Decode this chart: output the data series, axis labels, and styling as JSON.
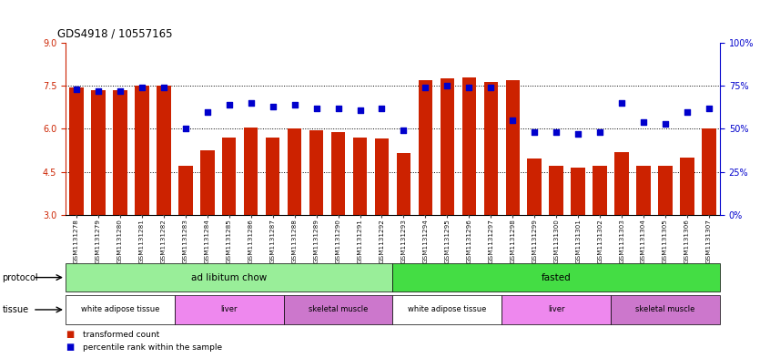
{
  "title": "GDS4918 / 10557165",
  "samples": [
    "GSM1131278",
    "GSM1131279",
    "GSM1131280",
    "GSM1131281",
    "GSM1131282",
    "GSM1131283",
    "GSM1131284",
    "GSM1131285",
    "GSM1131286",
    "GSM1131287",
    "GSM1131288",
    "GSM1131289",
    "GSM1131290",
    "GSM1131291",
    "GSM1131292",
    "GSM1131293",
    "GSM1131294",
    "GSM1131295",
    "GSM1131296",
    "GSM1131297",
    "GSM1131298",
    "GSM1131299",
    "GSM1131300",
    "GSM1131301",
    "GSM1131302",
    "GSM1131303",
    "GSM1131304",
    "GSM1131305",
    "GSM1131306",
    "GSM1131307"
  ],
  "bar_values": [
    7.45,
    7.35,
    7.35,
    7.5,
    7.5,
    4.7,
    5.25,
    5.7,
    6.05,
    5.7,
    6.0,
    5.95,
    5.9,
    5.7,
    5.65,
    5.15,
    7.7,
    7.75,
    7.8,
    7.65,
    7.7,
    4.95,
    4.7,
    4.65,
    4.7,
    5.2,
    4.72,
    4.7,
    5.0,
    6.0
  ],
  "percentile_values": [
    73,
    72,
    72,
    74,
    74,
    50,
    60,
    64,
    65,
    63,
    64,
    62,
    62,
    61,
    62,
    49,
    74,
    75,
    74,
    74,
    55,
    48,
    48,
    47,
    48,
    65,
    54,
    53,
    60,
    62
  ],
  "ylim_left": [
    3,
    9
  ],
  "ylim_right": [
    0,
    100
  ],
  "yticks_left": [
    3,
    4.5,
    6.0,
    7.5,
    9
  ],
  "yticks_right": [
    0,
    25,
    50,
    75,
    100
  ],
  "bar_color": "#cc2200",
  "dot_color": "#0000cc",
  "bar_bottom": 3,
  "grid_lines": [
    4.5,
    6.0,
    7.5
  ],
  "protocols": [
    {
      "label": "ad libitum chow",
      "start": 0,
      "end": 15,
      "color": "#99ee99"
    },
    {
      "label": "fasted",
      "start": 15,
      "end": 30,
      "color": "#44dd44"
    }
  ],
  "tissues": [
    {
      "label": "white adipose tissue",
      "start": 0,
      "end": 5,
      "color": "#ffffff"
    },
    {
      "label": "liver",
      "start": 5,
      "end": 10,
      "color": "#ee88ee"
    },
    {
      "label": "skeletal muscle",
      "start": 10,
      "end": 15,
      "color": "#cc77cc"
    },
    {
      "label": "white adipose tissue",
      "start": 15,
      "end": 20,
      "color": "#ffffff"
    },
    {
      "label": "liver",
      "start": 20,
      "end": 25,
      "color": "#ee88ee"
    },
    {
      "label": "skeletal muscle",
      "start": 25,
      "end": 30,
      "color": "#cc77cc"
    }
  ],
  "fig_width": 8.46,
  "fig_height": 3.93,
  "dpi": 100
}
